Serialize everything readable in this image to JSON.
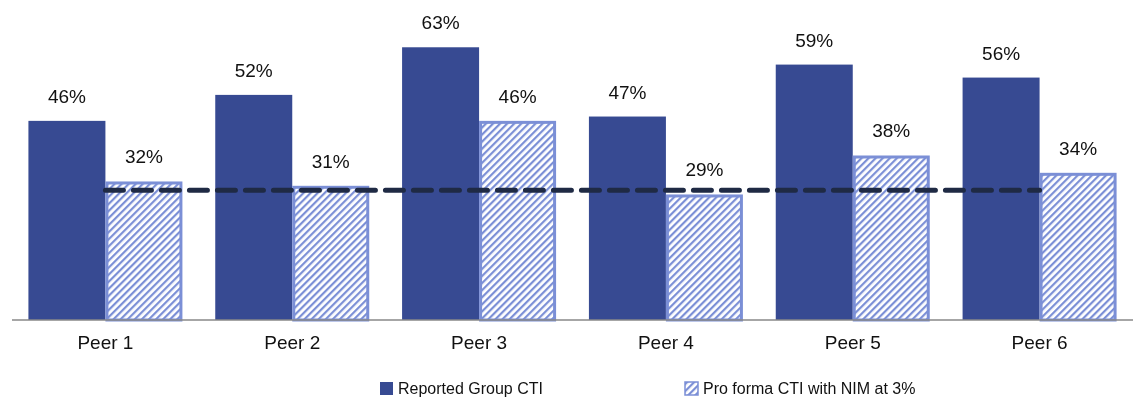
{
  "chart_data": {
    "type": "bar",
    "categories": [
      "Peer 1",
      "Peer 2",
      "Peer 3",
      "Peer 4",
      "Peer 5",
      "Peer 6"
    ],
    "series": [
      {
        "name": "Reported Group CTI",
        "color": "#374a92",
        "values": [
          46,
          52,
          63,
          47,
          59,
          56
        ],
        "value_labels": [
          "46%",
          "52%",
          "63%",
          "47%",
          "59%",
          "56%"
        ]
      },
      {
        "name": "Pro forma CTI with NIM at 3%",
        "color": "#7b8fd6",
        "values": [
          32,
          31,
          46,
          29,
          38,
          34
        ],
        "value_labels": [
          "32%",
          "31%",
          "46%",
          "29%",
          "38%",
          "34%"
        ]
      }
    ],
    "legend": "bottom",
    "ref_lines": [
      {
        "axis": "y",
        "value": 30,
        "color": "#1f2a44",
        "line_style": "dashed"
      }
    ]
  }
}
